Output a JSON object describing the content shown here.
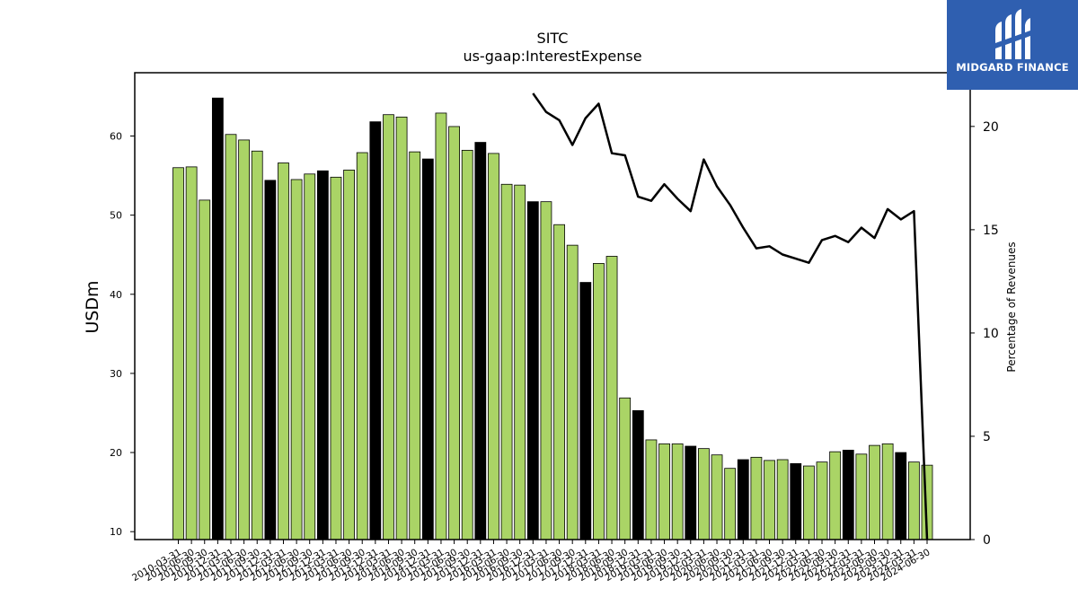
{
  "chart_data": {
    "type": "bar",
    "title": "SITC",
    "subtitle": "us-gaap:InterestExpense",
    "ylabel": "USDm",
    "y2label": "Percentage of Revenues",
    "ylim": [
      9,
      68
    ],
    "y2lim": [
      0,
      22.6
    ],
    "yticks": [
      10,
      20,
      30,
      40,
      50,
      60
    ],
    "y2ticks": [
      0,
      5,
      10,
      15,
      20
    ],
    "grid": false,
    "highlight_rule": "Q4 (12-31) bars are black; other quarters are green",
    "colors": {
      "bar": "#aad466",
      "bar_highlight": "#000000",
      "line": "#000000"
    },
    "categories": [
      "2010-03-31",
      "2010-06-30",
      "2010-09-30",
      "2010-12-31",
      "2011-03-31",
      "2011-06-30",
      "2011-09-30",
      "2011-12-31",
      "2012-03-31",
      "2012-06-30",
      "2012-09-30",
      "2012-12-31",
      "2013-03-31",
      "2013-06-30",
      "2013-09-30",
      "2013-12-31",
      "2014-03-31",
      "2014-06-30",
      "2014-09-30",
      "2014-12-31",
      "2015-03-31",
      "2015-06-30",
      "2015-09-30",
      "2015-12-31",
      "2016-03-31",
      "2016-06-30",
      "2016-09-30",
      "2016-12-31",
      "2017-03-31",
      "2017-06-30",
      "2017-09-30",
      "2017-12-31",
      "2018-03-31",
      "2018-06-30",
      "2018-09-30",
      "2018-12-31",
      "2019-03-31",
      "2019-06-30",
      "2019-09-30",
      "2019-12-31",
      "2020-03-31",
      "2020-06-30",
      "2020-09-30",
      "2020-12-31",
      "2021-03-31",
      "2021-06-30",
      "2021-09-30",
      "2021-12-31",
      "2022-03-31",
      "2022-06-30",
      "2022-09-30",
      "2022-12-31",
      "2023-03-31",
      "2023-06-30",
      "2023-09-30",
      "2023-12-31",
      "2024-03-31",
      "2024-06-30"
    ],
    "series": [
      {
        "kind": "bar",
        "axis": "left",
        "values": [
          56.0,
          56.1,
          51.9,
          64.8,
          60.2,
          59.5,
          58.1,
          54.4,
          56.6,
          54.5,
          55.2,
          55.6,
          54.8,
          55.7,
          57.9,
          61.8,
          62.7,
          62.4,
          58.0,
          57.1,
          62.9,
          61.2,
          58.2,
          59.2,
          57.8,
          53.9,
          53.8,
          51.7,
          51.7,
          48.8,
          46.2,
          41.5,
          43.9,
          44.8,
          26.9,
          25.3,
          21.6,
          21.1,
          21.1,
          20.8,
          20.5,
          19.7,
          18.0,
          19.1,
          19.4,
          19.0,
          19.1,
          18.6,
          18.3,
          18.8,
          20.1,
          20.3,
          19.8,
          20.9,
          21.1,
          20.0,
          18.8,
          18.4
        ]
      },
      {
        "kind": "line",
        "axis": "right",
        "x": [
          "2016-12-31",
          "2017-03-31",
          "2017-06-30",
          "2017-09-30",
          "2017-12-31",
          "2018-03-31",
          "2018-06-30",
          "2018-09-30",
          "2018-12-31",
          "2019-03-31",
          "2019-06-30",
          "2019-09-30",
          "2019-12-31",
          "2020-03-31",
          "2020-06-30",
          "2020-09-30",
          "2020-12-31",
          "2021-03-31",
          "2021-06-30",
          "2021-09-30",
          "2021-12-31",
          "2022-03-31",
          "2022-06-30",
          "2022-09-30",
          "2022-12-31",
          "2023-03-31",
          "2023-06-30",
          "2023-09-30",
          "2023-12-31",
          "2024-03-31",
          "2024-06-30"
        ],
        "values": [
          21.6,
          20.7,
          20.3,
          19.1,
          20.4,
          21.1,
          18.7,
          18.6,
          16.6,
          16.4,
          17.2,
          16.5,
          15.9,
          18.4,
          17.1,
          16.2,
          15.1,
          14.1,
          14.2,
          13.8,
          13.6,
          13.4,
          14.5,
          14.7,
          14.4,
          15.1,
          14.6,
          16.0,
          15.5,
          15.9,
          0
        ]
      }
    ]
  },
  "logo": {
    "text": "MIDGARD FINANCE",
    "icon": "midgard-logo-icon"
  }
}
